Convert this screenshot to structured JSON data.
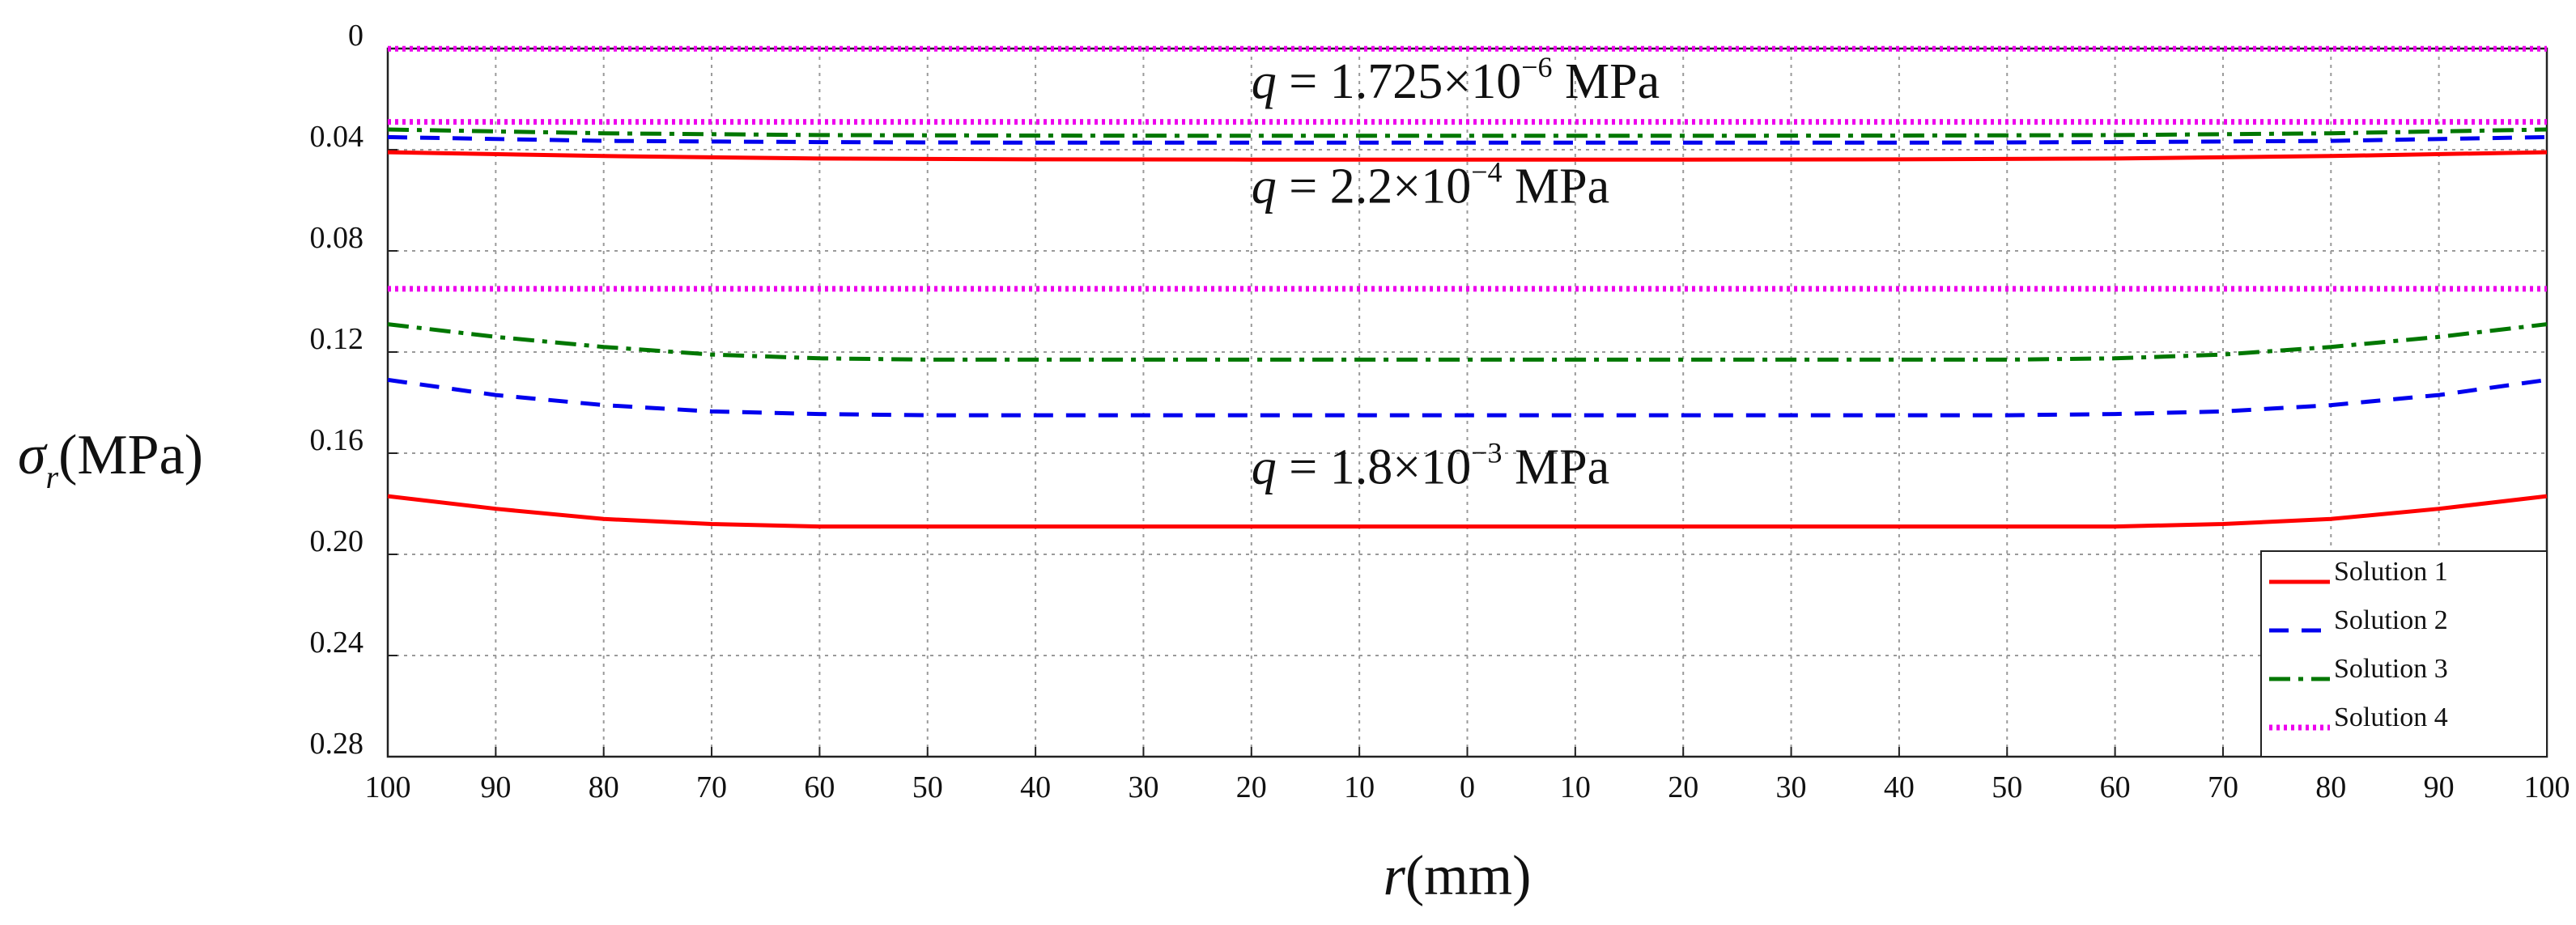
{
  "chart_data": {
    "type": "line",
    "title": "",
    "xlabel_var": "r",
    "xlabel_unit": "(mm)",
    "ylabel_var": "σ",
    "ylabel_sub": "r",
    "ylabel_unit": "(MPa)",
    "x_position": [
      -100,
      -90,
      -80,
      -70,
      -60,
      -50,
      -40,
      -30,
      -20,
      -10,
      0,
      10,
      20,
      30,
      40,
      50,
      60,
      70,
      80,
      90,
      100
    ],
    "x_tick_labels": [
      "100",
      "90",
      "80",
      "70",
      "60",
      "50",
      "40",
      "30",
      "20",
      "10",
      "0",
      "10",
      "20",
      "30",
      "40",
      "50",
      "60",
      "70",
      "80",
      "90",
      "100"
    ],
    "xlim": [
      -100,
      100
    ],
    "y_tick_values": [
      0,
      0.04,
      0.08,
      0.12,
      0.16,
      0.2,
      0.24,
      0.28
    ],
    "y_tick_labels": [
      "0",
      "0.04",
      "0.08",
      "0.12",
      "0.16",
      "0.20",
      "0.24",
      "0.28"
    ],
    "ylim": [
      0,
      0.28
    ],
    "y_inverted": true,
    "grid": true,
    "legend_position": "bottom-right",
    "series": [
      {
        "name": "Solution 1",
        "color": "#ff0000",
        "style": "solid",
        "groups": [
          {
            "x": [
              -100,
              -80,
              -60,
              -40,
              -20,
              0,
              20,
              40,
              60,
              80,
              100
            ],
            "y": [
              0.041,
              0.0425,
              0.0435,
              0.0438,
              0.0439,
              0.0439,
              0.0439,
              0.0438,
              0.0435,
              0.0425,
              0.041
            ]
          },
          {
            "x": [
              -100,
              -90,
              -80,
              -70,
              -60,
              -50,
              -40,
              -30,
              -20,
              -10,
              0,
              10,
              20,
              30,
              40,
              50,
              60,
              70,
              80,
              90,
              100
            ],
            "y": [
              0.177,
              0.182,
              0.186,
              0.188,
              0.189,
              0.189,
              0.189,
              0.189,
              0.189,
              0.189,
              0.189,
              0.189,
              0.189,
              0.189,
              0.189,
              0.189,
              0.189,
              0.188,
              0.186,
              0.182,
              0.177
            ]
          }
        ]
      },
      {
        "name": "Solution 2",
        "color": "#0000ee",
        "style": "dashed",
        "groups": [
          {
            "x": [
              -100,
              -80,
              -60,
              -40,
              -20,
              0,
              20,
              40,
              60,
              80,
              100
            ],
            "y": [
              0.035,
              0.0365,
              0.037,
              0.0372,
              0.0372,
              0.0372,
              0.0372,
              0.0372,
              0.037,
              0.0365,
              0.035
            ]
          },
          {
            "x": [
              -100,
              -90,
              -80,
              -70,
              -60,
              -50,
              -40,
              -30,
              -20,
              -10,
              0,
              10,
              20,
              30,
              40,
              50,
              60,
              70,
              80,
              90,
              100
            ],
            "y": [
              0.131,
              0.137,
              0.141,
              0.1435,
              0.1445,
              0.145,
              0.145,
              0.145,
              0.145,
              0.145,
              0.145,
              0.145,
              0.145,
              0.145,
              0.145,
              0.145,
              0.1445,
              0.1435,
              0.141,
              0.137,
              0.131
            ]
          }
        ]
      },
      {
        "name": "Solution 3",
        "color": "#007700",
        "style": "dashdot",
        "groups": [
          {
            "x": [
              -100,
              -80,
              -60,
              -40,
              -20,
              0,
              20,
              40,
              60,
              80,
              100
            ],
            "y": [
              0.032,
              0.0335,
              0.0342,
              0.0344,
              0.0345,
              0.0345,
              0.0345,
              0.0344,
              0.0342,
              0.0335,
              0.032
            ]
          },
          {
            "x": [
              -100,
              -90,
              -80,
              -70,
              -60,
              -50,
              -40,
              -30,
              -20,
              -10,
              0,
              10,
              20,
              30,
              40,
              50,
              60,
              70,
              80,
              90,
              100
            ],
            "y": [
              0.109,
              0.114,
              0.118,
              0.121,
              0.1225,
              0.123,
              0.123,
              0.123,
              0.123,
              0.123,
              0.123,
              0.123,
              0.123,
              0.123,
              0.123,
              0.123,
              0.1225,
              0.121,
              0.118,
              0.114,
              0.109
            ]
          }
        ]
      },
      {
        "name": "Solution 4",
        "color": "#ee00ee",
        "style": "dotted",
        "groups": [
          {
            "x": [
              -100,
              100
            ],
            "y": [
              0.0001,
              0.0001
            ]
          },
          {
            "x": [
              -100,
              100
            ],
            "y": [
              0.029,
              0.029
            ]
          },
          {
            "x": [
              -100,
              100
            ],
            "y": [
              0.095,
              0.095
            ]
          }
        ]
      }
    ],
    "annotations": [
      {
        "var": "q",
        "eq": " = ",
        "mant": "1.725",
        "times": "×",
        "base": "10",
        "exp": "−6",
        "unit": " MPa",
        "x": -20,
        "y": 0.0195
      },
      {
        "var": "q",
        "eq": " = ",
        "mant": "2.2",
        "times": "×",
        "base": "10",
        "exp": "−4",
        "unit": " MPa",
        "x": -20,
        "y": 0.061
      },
      {
        "var": "q",
        "eq": " = ",
        "mant": "1.8",
        "times": "×",
        "base": "10",
        "exp": "−3",
        "unit": " MPa",
        "x": -20,
        "y": 0.172
      }
    ]
  }
}
